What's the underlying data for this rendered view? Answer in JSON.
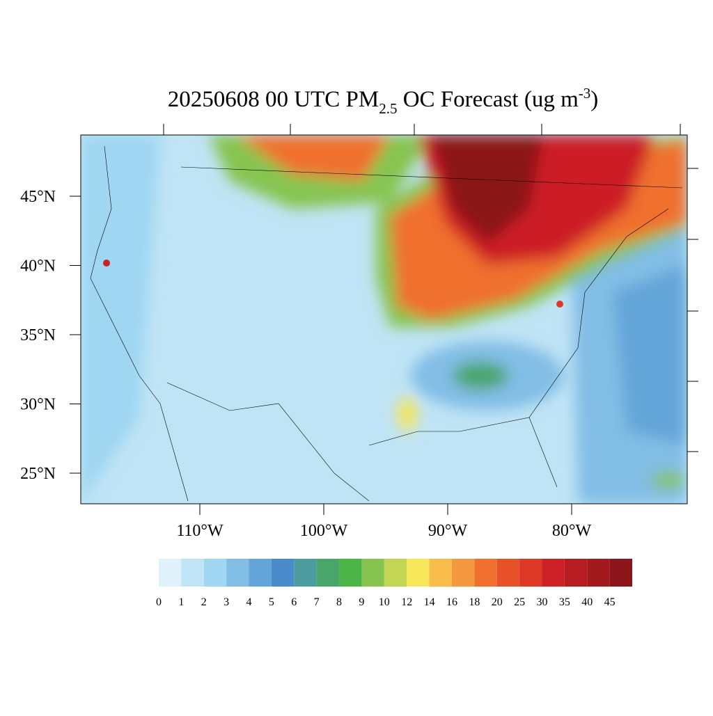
{
  "title": {
    "main": "20250608 00 UTC PM",
    "sub": "2.5",
    "rest": " OC Forecast (ug m",
    "sup": "-3",
    "end": ")"
  },
  "lat_ticks": [
    {
      "value": 45,
      "label": "45°N"
    },
    {
      "value": 40,
      "label": "40°N"
    },
    {
      "value": 35,
      "label": "35°N"
    },
    {
      "value": 30,
      "label": "30°N"
    },
    {
      "value": 25,
      "label": "25°N"
    }
  ],
  "lon_ticks": [
    {
      "value": -110,
      "label": "110°W"
    },
    {
      "value": -100,
      "label": "100°W"
    },
    {
      "value": -90,
      "label": "90°W"
    },
    {
      "value": -80,
      "label": "80°W"
    }
  ],
  "colorbar": {
    "levels": [
      0,
      1,
      2,
      3,
      4,
      5,
      6,
      7,
      8,
      9,
      10,
      12,
      14,
      16,
      18,
      20,
      25,
      30,
      35,
      40,
      45
    ],
    "colors": [
      "#dff1fa",
      "#bfe4f5",
      "#9fd6f2",
      "#82bde5",
      "#63a5d8",
      "#4a8bcb",
      "#4c9c9f",
      "#4aa56b",
      "#4cb548",
      "#86c44f",
      "#c3d653",
      "#f6e65a",
      "#f8bc4a",
      "#f49840",
      "#f0702f",
      "#e65128",
      "#dc3825",
      "#cc1f26",
      "#b81c23",
      "#a31a1e",
      "#8b1518"
    ]
  }
}
